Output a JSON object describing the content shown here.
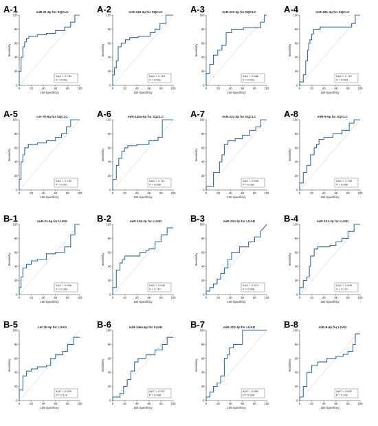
{
  "figure": {
    "colors": {
      "curve": "#2e6da4",
      "diagonal": "#b0b0b0",
      "axis": "#333333",
      "text": "#222222"
    },
    "axis_labels": {
      "x": "100-Specificity",
      "y": "Sensitivity"
    },
    "ticks": [
      0,
      20,
      40,
      60,
      80,
      100
    ]
  },
  "chart_data": [
    {
      "type": "line",
      "panel_label": "A-1",
      "title": "miR-21-5p for SQCLC",
      "auc_text": "AUC = 0.734",
      "p_text": "P = 0.002",
      "xlim": [
        0,
        100
      ],
      "ylim": [
        0,
        100
      ],
      "x": [
        0,
        0,
        3,
        3,
        6,
        6,
        9,
        9,
        12,
        12,
        16,
        16,
        30,
        30,
        45,
        45,
        60,
        60,
        75,
        75,
        85,
        85,
        92,
        92,
        100
      ],
      "y": [
        0,
        20,
        20,
        40,
        40,
        55,
        55,
        62,
        62,
        67,
        67,
        70,
        70,
        72,
        72,
        74,
        74,
        78,
        78,
        83,
        83,
        90,
        90,
        100,
        100
      ]
    },
    {
      "type": "line",
      "panel_label": "A-2",
      "title": "miR-126-3p for SQCLC",
      "auc_text": "AUC = 0.729",
      "p_text": "P = 0.002",
      "xlim": [
        0,
        100
      ],
      "ylim": [
        0,
        100
      ],
      "x": [
        0,
        0,
        3,
        3,
        6,
        6,
        9,
        9,
        14,
        14,
        21,
        21,
        28,
        28,
        42,
        42,
        62,
        62,
        70,
        70,
        78,
        78,
        88,
        88,
        100
      ],
      "y": [
        0,
        15,
        15,
        25,
        25,
        35,
        35,
        55,
        55,
        60,
        60,
        65,
        65,
        68,
        68,
        70,
        70,
        75,
        75,
        80,
        80,
        88,
        88,
        100,
        100
      ]
    },
    {
      "type": "line",
      "panel_label": "A-3",
      "title": "miR-210-3p for SQCLC",
      "auc_text": "AUC = 0.686",
      "p_text": "P = 0.023",
      "xlim": [
        0,
        100
      ],
      "ylim": [
        0,
        100
      ],
      "x": [
        0,
        0,
        6,
        6,
        12,
        12,
        19,
        19,
        26,
        26,
        33,
        33,
        42,
        42,
        62,
        62,
        90,
        90,
        96,
        96,
        100
      ],
      "y": [
        0,
        17,
        17,
        30,
        30,
        43,
        43,
        50,
        50,
        57,
        57,
        75,
        75,
        80,
        80,
        82,
        82,
        90,
        90,
        100,
        100
      ]
    },
    {
      "type": "line",
      "panel_label": "A-4",
      "title": "miR-221-3p for SQCLC",
      "auc_text": "AUC = 0.712",
      "p_text": "P = 0.004",
      "xlim": [
        0,
        100
      ],
      "ylim": [
        0,
        100
      ],
      "x": [
        0,
        0,
        6,
        6,
        10,
        10,
        13,
        13,
        15,
        15,
        17,
        17,
        20,
        20,
        23,
        23,
        34,
        34,
        86,
        86,
        92,
        92,
        100
      ],
      "y": [
        0,
        5,
        5,
        15,
        15,
        35,
        35,
        50,
        50,
        60,
        60,
        65,
        65,
        73,
        73,
        80,
        80,
        83,
        83,
        88,
        88,
        100,
        100
      ]
    },
    {
      "type": "line",
      "panel_label": "A-5",
      "title": "Let-7b-5p for SQCLC",
      "auc_text": "AUC = 0.740",
      "p_text": "P = 0.001",
      "xlim": [
        0,
        100
      ],
      "ylim": [
        0,
        100
      ],
      "x": [
        0,
        0,
        3,
        3,
        6,
        6,
        9,
        9,
        15,
        15,
        30,
        30,
        45,
        45,
        60,
        60,
        70,
        70,
        78,
        78,
        85,
        85,
        100
      ],
      "y": [
        0,
        15,
        15,
        40,
        40,
        50,
        50,
        60,
        60,
        65,
        65,
        67,
        67,
        70,
        70,
        75,
        75,
        80,
        80,
        90,
        90,
        100,
        100
      ]
    },
    {
      "type": "line",
      "panel_label": "A-6",
      "title": "miR-146a-5p for SQCLC",
      "auc_text": "AUC = 0.711",
      "p_text": "P = 0.006",
      "xlim": [
        0,
        100
      ],
      "ylim": [
        0,
        100
      ],
      "x": [
        0,
        0,
        6,
        6,
        10,
        10,
        15,
        15,
        20,
        20,
        25,
        25,
        40,
        40,
        60,
        60,
        75,
        75,
        82,
        82,
        100
      ],
      "y": [
        0,
        15,
        15,
        35,
        35,
        45,
        45,
        55,
        55,
        60,
        60,
        63,
        63,
        65,
        65,
        70,
        70,
        75,
        75,
        100,
        100
      ]
    },
    {
      "type": "line",
      "panel_label": "A-7",
      "title": "miR-222-3p for SQCLC",
      "auc_text": "AUC = 0.646",
      "p_text": "P = 0.082",
      "xlim": [
        0,
        100
      ],
      "ylim": [
        0,
        100
      ],
      "x": [
        0,
        0,
        12,
        12,
        22,
        22,
        26,
        26,
        30,
        30,
        36,
        36,
        48,
        48,
        60,
        60,
        72,
        72,
        82,
        82,
        90,
        90,
        100
      ],
      "y": [
        0,
        5,
        5,
        25,
        25,
        40,
        40,
        50,
        50,
        65,
        65,
        70,
        70,
        73,
        73,
        78,
        78,
        85,
        85,
        90,
        90,
        100,
        100
      ]
    },
    {
      "type": "line",
      "panel_label": "A-8",
      "title": "miR-9-5p for SQCLC",
      "auc_text": "AUC = 0.705",
      "p_text": "P = 0.006",
      "xlim": [
        0,
        100
      ],
      "ylim": [
        0,
        100
      ],
      "x": [
        0,
        0,
        6,
        6,
        12,
        12,
        18,
        18,
        24,
        24,
        28,
        28,
        32,
        32,
        40,
        40,
        55,
        55,
        70,
        70,
        82,
        82,
        90,
        90,
        100
      ],
      "y": [
        0,
        10,
        10,
        25,
        25,
        35,
        35,
        50,
        50,
        60,
        60,
        65,
        65,
        72,
        72,
        75,
        75,
        80,
        80,
        85,
        85,
        95,
        95,
        100,
        100
      ]
    },
    {
      "type": "line",
      "panel_label": "B-1",
      "title": "miR-21-5p for LUAD",
      "auc_text": "AUC = 0.596",
      "p_text": "P = 0.293",
      "xlim": [
        0,
        100
      ],
      "ylim": [
        0,
        100
      ],
      "x": [
        0,
        0,
        3,
        3,
        6,
        6,
        12,
        12,
        20,
        20,
        30,
        30,
        45,
        45,
        60,
        60,
        75,
        75,
        85,
        85,
        92,
        92,
        100
      ],
      "y": [
        0,
        10,
        10,
        25,
        25,
        38,
        38,
        43,
        43,
        48,
        48,
        50,
        50,
        58,
        58,
        60,
        60,
        68,
        68,
        85,
        85,
        100,
        100
      ]
    },
    {
      "type": "line",
      "panel_label": "B-2",
      "title": "miR-126-3p for LUAD",
      "auc_text": "AUC = 0.634",
      "p_text": "P = 0.107",
      "xlim": [
        0,
        100
      ],
      "ylim": [
        0,
        100
      ],
      "x": [
        0,
        0,
        6,
        6,
        12,
        12,
        16,
        16,
        20,
        20,
        45,
        45,
        55,
        55,
        60,
        60,
        70,
        70,
        80,
        80,
        90,
        90,
        100
      ],
      "y": [
        0,
        10,
        10,
        35,
        35,
        45,
        45,
        50,
        50,
        55,
        55,
        60,
        60,
        63,
        63,
        65,
        65,
        75,
        75,
        85,
        85,
        95,
        95
      ]
    },
    {
      "type": "line",
      "panel_label": "B-3",
      "title": "miR-210-3p for LUAD",
      "auc_text": "AUC = 0.570",
      "p_text": "P = 0.668",
      "xlim": [
        0,
        100
      ],
      "ylim": [
        0,
        100
      ],
      "x": [
        0,
        0,
        6,
        6,
        12,
        12,
        18,
        18,
        24,
        24,
        30,
        30,
        36,
        36,
        42,
        42,
        55,
        55,
        70,
        70,
        80,
        80,
        90,
        90,
        100
      ],
      "y": [
        0,
        5,
        5,
        10,
        10,
        15,
        15,
        22,
        22,
        30,
        30,
        38,
        38,
        50,
        50,
        60,
        60,
        68,
        68,
        75,
        75,
        82,
        82,
        90,
        100
      ]
    },
    {
      "type": "line",
      "panel_label": "B-4",
      "title": "miR-221-3p for LUAD",
      "auc_text": "AUC = 0.626",
      "p_text": "P = 0.137",
      "xlim": [
        0,
        100
      ],
      "ylim": [
        0,
        100
      ],
      "x": [
        0,
        0,
        6,
        6,
        12,
        12,
        16,
        16,
        18,
        18,
        24,
        24,
        30,
        30,
        50,
        50,
        60,
        60,
        70,
        70,
        80,
        80,
        90,
        90,
        100
      ],
      "y": [
        0,
        10,
        10,
        20,
        20,
        25,
        25,
        40,
        40,
        55,
        55,
        65,
        65,
        68,
        68,
        70,
        70,
        75,
        75,
        80,
        80,
        90,
        90,
        100,
        100
      ]
    },
    {
      "type": "line",
      "panel_label": "B-5",
      "title": "Let-7b-5p for LUAD",
      "auc_text": "AUC = 0.629",
      "p_text": "P = 0.119",
      "xlim": [
        0,
        100
      ],
      "ylim": [
        0,
        100
      ],
      "x": [
        0,
        0,
        6,
        6,
        12,
        12,
        20,
        20,
        30,
        30,
        45,
        45,
        52,
        52,
        60,
        60,
        72,
        72,
        80,
        80,
        90,
        90,
        100
      ],
      "y": [
        0,
        15,
        15,
        35,
        35,
        42,
        42,
        45,
        45,
        48,
        48,
        50,
        50,
        60,
        60,
        65,
        65,
        70,
        70,
        80,
        80,
        90,
        90
      ]
    },
    {
      "type": "line",
      "panel_label": "B-6",
      "title": "miR-146a-5p for LUAD",
      "auc_text": "AUC = 0.571",
      "p_text": "P = 0.496",
      "xlim": [
        0,
        100
      ],
      "ylim": [
        0,
        100
      ],
      "x": [
        0,
        0,
        12,
        12,
        18,
        18,
        24,
        24,
        30,
        30,
        36,
        36,
        42,
        42,
        55,
        55,
        70,
        70,
        82,
        82,
        90,
        90,
        100
      ],
      "y": [
        0,
        5,
        5,
        10,
        10,
        20,
        20,
        30,
        30,
        42,
        42,
        55,
        55,
        60,
        60,
        65,
        65,
        72,
        72,
        80,
        80,
        90,
        90
      ]
    },
    {
      "type": "line",
      "panel_label": "B-7",
      "title": "miR-222-3p for LUAD",
      "auc_text": "AUC = 0.655",
      "p_text": "P = 0.909",
      "xlim": [
        0,
        100
      ],
      "ylim": [
        0,
        100
      ],
      "x": [
        0,
        0,
        6,
        6,
        12,
        12,
        18,
        18,
        24,
        24,
        30,
        30,
        35,
        35,
        38,
        38,
        45,
        45,
        60,
        60,
        75,
        75,
        100
      ],
      "y": [
        0,
        5,
        5,
        12,
        12,
        20,
        20,
        25,
        25,
        35,
        35,
        60,
        60,
        65,
        65,
        75,
        75,
        80,
        80,
        100,
        100,
        100,
        100
      ]
    },
    {
      "type": "line",
      "panel_label": "B-8",
      "title": "miR-9-5p for LUAD",
      "auc_text": "AUC = 0.602",
      "p_text": "P = 0.242",
      "xlim": [
        0,
        100
      ],
      "ylim": [
        0,
        100
      ],
      "x": [
        0,
        0,
        6,
        6,
        12,
        12,
        20,
        20,
        30,
        30,
        45,
        45,
        60,
        60,
        72,
        72,
        80,
        80,
        88,
        88,
        92,
        92,
        100
      ],
      "y": [
        0,
        5,
        5,
        20,
        20,
        40,
        40,
        50,
        50,
        55,
        55,
        60,
        60,
        63,
        63,
        66,
        66,
        70,
        70,
        80,
        80,
        95,
        95
      ]
    }
  ]
}
